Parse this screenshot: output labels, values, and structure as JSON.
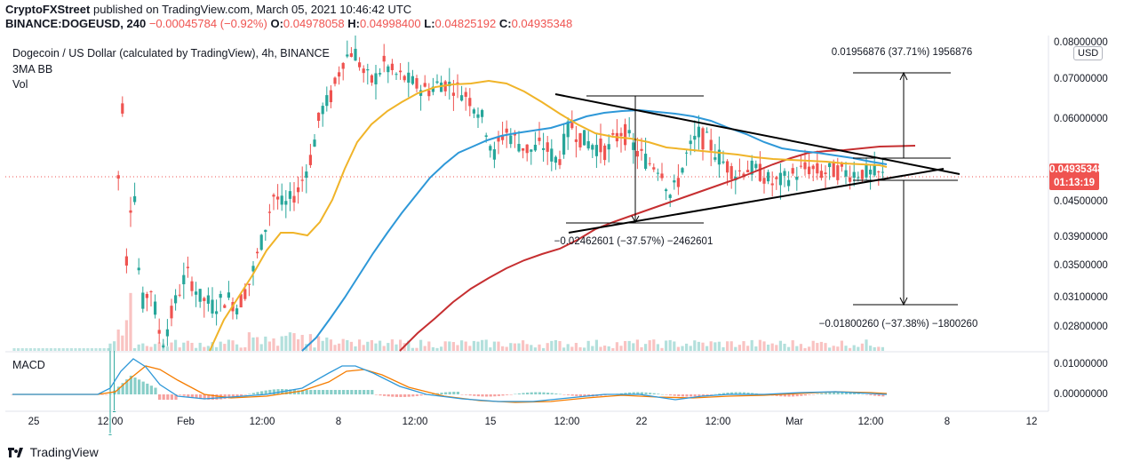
{
  "header": {
    "publisher": "CryptoFXStreet",
    "published_text": "published on TradingView.com, March 05, 2021 10:46:42 UTC",
    "symbol": "BINANCE:DOGEUSD, 240",
    "change": "−0.00045784 (−0.92%)",
    "open_label": "O:",
    "open": "0.04978058",
    "high_label": "H:",
    "high": "0.04998400",
    "low_label": "L:",
    "low": "0.04825192",
    "close_label": "C:",
    "close": "0.04935348"
  },
  "legend": {
    "title": "Dogecoin / US Dollar (calculated by TradingView), 4h, BINANCE",
    "indicator1": "3MA BB",
    "indicator2": "Vol",
    "macd": "MACD"
  },
  "price_badge": {
    "price": "0.04935348",
    "timer": "01:13:19"
  },
  "usd_label": "USD",
  "footer": {
    "brand": "TradingView"
  },
  "annotations": {
    "top_right": "0.01956876 (37.71%) 1956876",
    "middle": "−0.02462601 (−37.57%) −2462601",
    "bottom_right": "−0.01800260 (−37.38%) −1800260"
  },
  "colors": {
    "bull": "#26a69a",
    "bear": "#ef5350",
    "ma_fast": "#f0b429",
    "ma_mid": "#2e98d8",
    "ma_slow": "#c62f31",
    "macd_line": "#2e98d8",
    "signal_line": "#f57c00"
  },
  "chart_data": {
    "type": "candlestick",
    "y_ticks": [
      "0.08000000",
      "0.07000000",
      "0.06000000",
      "0.04500000",
      "0.03900000",
      "0.03500000",
      "0.03100000",
      "0.02800000"
    ],
    "macd_ticks": [
      "0.01000000",
      "0.00000000"
    ],
    "x_ticks": [
      "25",
      "12:00",
      "Feb",
      "12:00",
      "8",
      "12:00",
      "15",
      "12:00",
      "22",
      "12:00",
      "Mar",
      "12:00",
      "8",
      "12"
    ],
    "last_price": 0.04935348,
    "pattern": "symmetrical triangle"
  }
}
